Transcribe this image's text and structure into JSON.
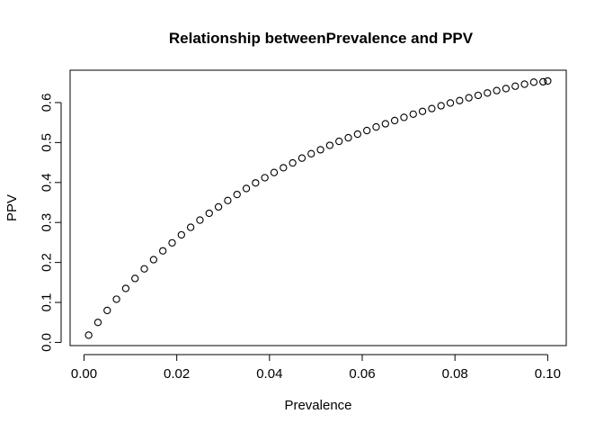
{
  "chart_data": {
    "type": "scatter",
    "title": "Relationship betweenPrevalence and PPV",
    "xlabel": "Prevalence",
    "ylabel": "PPV",
    "xlim": [
      -0.003,
      0.104
    ],
    "ylim": [
      -0.008,
      0.681
    ],
    "x_ticks": [
      0.0,
      0.02,
      0.04,
      0.06,
      0.08,
      0.1
    ],
    "x_tick_labels": [
      "0.00",
      "0.02",
      "0.04",
      "0.06",
      "0.08",
      "0.10"
    ],
    "y_ticks": [
      0.0,
      0.1,
      0.2,
      0.3,
      0.4,
      0.5,
      0.6
    ],
    "y_tick_labels": [
      "0.0",
      "0.1",
      "0.2",
      "0.3",
      "0.4",
      "0.5",
      "0.6"
    ],
    "grid": false,
    "marker": "open-circle",
    "x": [
      0.001,
      0.003,
      0.005,
      0.007,
      0.009,
      0.011,
      0.013,
      0.015,
      0.017,
      0.019,
      0.021,
      0.023,
      0.025,
      0.027,
      0.029,
      0.031,
      0.033,
      0.035,
      0.037,
      0.039,
      0.041,
      0.043,
      0.045,
      0.047,
      0.049,
      0.051,
      0.053,
      0.055,
      0.057,
      0.059,
      0.061,
      0.063,
      0.065,
      0.067,
      0.069,
      0.071,
      0.073,
      0.075,
      0.077,
      0.079,
      0.081,
      0.083,
      0.085,
      0.087,
      0.089,
      0.091,
      0.093,
      0.095,
      0.097,
      0.099,
      0.1
    ],
    "y": [
      0.018,
      0.05,
      0.08,
      0.108,
      0.135,
      0.16,
      0.184,
      0.207,
      0.229,
      0.249,
      0.269,
      0.288,
      0.306,
      0.323,
      0.339,
      0.355,
      0.37,
      0.385,
      0.399,
      0.412,
      0.425,
      0.437,
      0.449,
      0.461,
      0.472,
      0.482,
      0.493,
      0.503,
      0.512,
      0.521,
      0.53,
      0.539,
      0.547,
      0.555,
      0.563,
      0.571,
      0.578,
      0.585,
      0.592,
      0.599,
      0.605,
      0.612,
      0.618,
      0.624,
      0.63,
      0.635,
      0.641,
      0.646,
      0.651,
      0.652,
      0.654
    ]
  }
}
